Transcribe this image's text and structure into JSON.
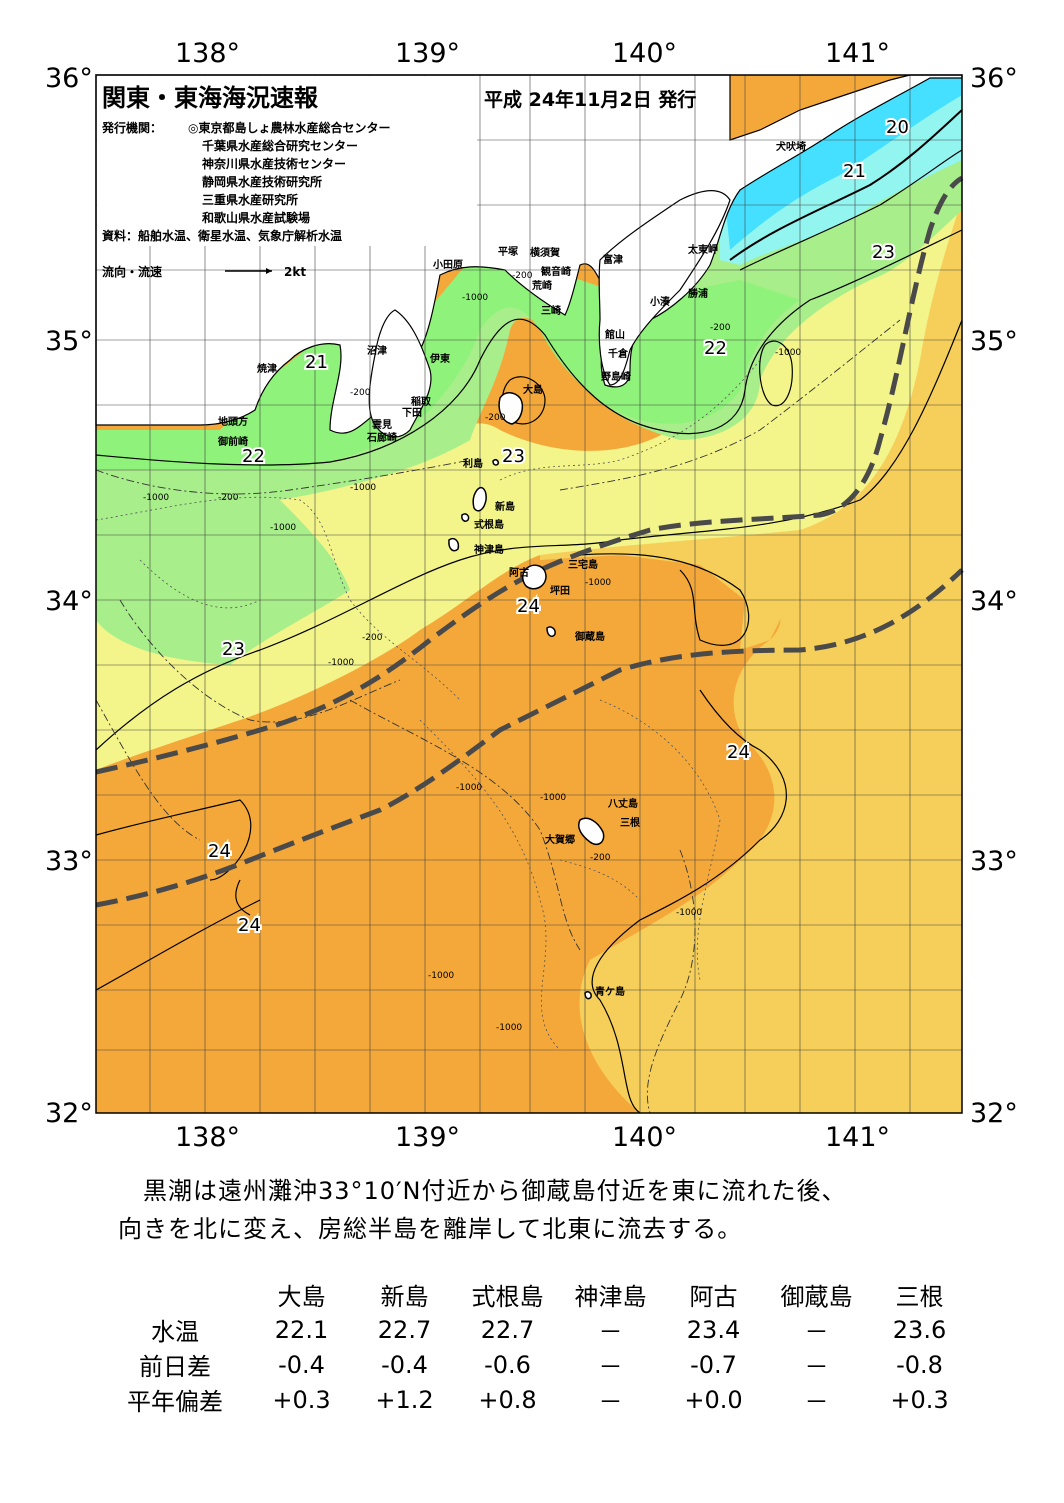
{
  "header": {
    "title": "関東・東海海況速報",
    "date": "平成 24年11月2日 発行",
    "publisher_label": "発行機関：",
    "publishers": [
      "◎東京都島しょ農林水産総合センター",
      "千葉県水産総合研究センター",
      "神奈川県水産技術センター",
      "静岡県水産技術研究所",
      "三重県水産研究所",
      "和歌山県水産試験場"
    ],
    "source": "資料：船舶水温、衛星水温、気象庁解析水温",
    "flow_label": "流向・流速",
    "flow_scale": "2kt"
  },
  "axes": {
    "lon_top": [
      "138°",
      "139°",
      "140°",
      "141°"
    ],
    "lon_bottom": [
      "138°",
      "139°",
      "140°",
      "141°"
    ],
    "lat_left": [
      "36°",
      "35°",
      "34°",
      "33°",
      "32°"
    ],
    "lat_right": [
      "36°",
      "35°",
      "34°",
      "33°",
      "32°"
    ]
  },
  "place_names": {
    "inubosaki": "犬吠埼",
    "taitozaki": "太東岬",
    "katsuura": "勝浦",
    "kominato": "小湊",
    "tateyama": "館山",
    "chikura": "千倉",
    "nojimazaki": "野島崎",
    "futtsu": "富津",
    "kannonzaki": "観音崎",
    "yokosuka": "横須賀",
    "hiratsuka": "平塚",
    "odawara": "小田原",
    "araizaki": "荒崎",
    "misaki": "三崎",
    "numazu": "沼津",
    "yaizu": "焼津",
    "ito": "伊東",
    "inatori": "稲取",
    "shimoda": "下田",
    "kumomi": "雲見",
    "irozaki": "石廊崎",
    "jitogata": "地頭方",
    "omaezaki": "御前崎",
    "oshima": "大島",
    "toshima": "利島",
    "niijima": "新島",
    "shikinejima": "式根島",
    "kozushima": "神津島",
    "miyakejima": "三宅島",
    "ako": "阿古",
    "tsubota": "坪田",
    "mikurajima": "御蔵島",
    "hachijojima": "八丈島",
    "mine": "三根",
    "okago": "大賀郷",
    "aogashima": "青ケ島"
  },
  "isotherm_labels": [
    "20",
    "21",
    "23",
    "22",
    "21",
    "22",
    "23",
    "24",
    "23",
    "24",
    "24",
    "24"
  ],
  "depth_labels": [
    "-200",
    "-1000"
  ],
  "colors": {
    "t20": "#45e0ff",
    "t21": "#92f5f0",
    "t22": "#8ff27a",
    "t22b": "#a8ee8a",
    "t23": "#f3f58a",
    "t23b": "#f6e070",
    "t24": "#f6cf5a",
    "t25": "#f5a83a",
    "land": "#ffffff",
    "kuroshio_axis": "#4a4a4a"
  },
  "summary": {
    "line1": "　黒潮は遠州灘沖33°10′N付近から御蔵島付近を東に流れた後、",
    "line2": "向きを北に変え、房総半島を離岸して北東に流去する。"
  },
  "table": {
    "columns": [
      "大島",
      "新島",
      "式根島",
      "神津島",
      "阿古",
      "御蔵島",
      "三根"
    ],
    "rows": [
      {
        "label": "水温",
        "values": [
          "22.1",
          "22.7",
          "22.7",
          "－",
          "23.4",
          "－",
          "23.6"
        ]
      },
      {
        "label": "前日差",
        "values": [
          "-0.4",
          "-0.4",
          "-0.6",
          "－",
          "-0.7",
          "－",
          "-0.8"
        ]
      },
      {
        "label": "平年偏差",
        "values": [
          "+0.3",
          "+1.2",
          "+0.8",
          "－",
          "+0.0",
          "－",
          "+0.3"
        ]
      }
    ]
  }
}
